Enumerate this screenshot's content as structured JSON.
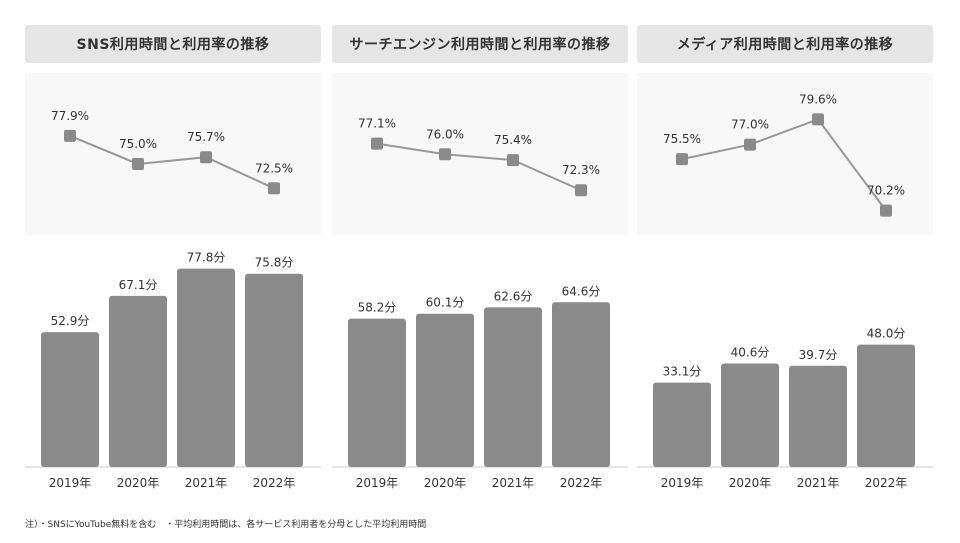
{
  "panels": [
    {
      "title": "SNS利用時間と利用率の推移"
    },
    {
      "title": "サーチエンジン利用時間と利用率の推移"
    },
    {
      "title": "メディア利用時間と利用率の推移"
    }
  ],
  "note": "注）・SNSにYouTube無料を含む　・平均利用時間は、各サービス利用者を分母とした平均利用時間",
  "colors": {
    "bar": "#8a8a8a",
    "line": "#999999",
    "marker": "#8a8a8a",
    "title_bg": "#e6e6e6",
    "line_bg": "#f8f8f8"
  },
  "chart_data": [
    {
      "type": "line",
      "title": "SNS利用時間と利用率の推移",
      "categories": [
        "2019年",
        "2020年",
        "2021年",
        "2022年"
      ],
      "values": [
        77.9,
        75.0,
        75.7,
        72.5
      ],
      "labels": [
        "77.9%",
        "75.0%",
        "75.7%",
        "72.5%"
      ]
    },
    {
      "type": "line",
      "title": "サーチエンジン利用時間と利用率の推移",
      "categories": [
        "2019年",
        "2020年",
        "2021年",
        "2022年"
      ],
      "values": [
        77.1,
        76.0,
        75.4,
        72.3
      ],
      "labels": [
        "77.1%",
        "76.0%",
        "75.4%",
        "72.3%"
      ]
    },
    {
      "type": "line",
      "title": "メディア利用時間と利用率の推移",
      "categories": [
        "2019年",
        "2020年",
        "2021年",
        "2022年"
      ],
      "values": [
        75.5,
        77.0,
        79.6,
        70.2
      ],
      "labels": [
        "75.5%",
        "77.0%",
        "79.6%",
        "70.2%"
      ]
    },
    {
      "type": "bar",
      "categories": [
        "2019年",
        "2020年",
        "2021年",
        "2022年"
      ],
      "values": [
        52.9,
        67.1,
        77.8,
        75.8
      ],
      "labels": [
        "52.9分",
        "67.1分",
        "77.8分",
        "75.8分"
      ]
    },
    {
      "type": "bar",
      "categories": [
        "2019年",
        "2020年",
        "2021年",
        "2022年"
      ],
      "values": [
        58.2,
        60.1,
        62.6,
        64.6
      ],
      "labels": [
        "58.2分",
        "60.1分",
        "62.6分",
        "64.6分"
      ]
    },
    {
      "type": "bar",
      "categories": [
        "2019年",
        "2020年",
        "2021年",
        "2022年"
      ],
      "values": [
        33.1,
        40.6,
        39.7,
        48.0
      ],
      "labels": [
        "33.1分",
        "40.6分",
        "39.7分",
        "48.0分"
      ]
    }
  ]
}
